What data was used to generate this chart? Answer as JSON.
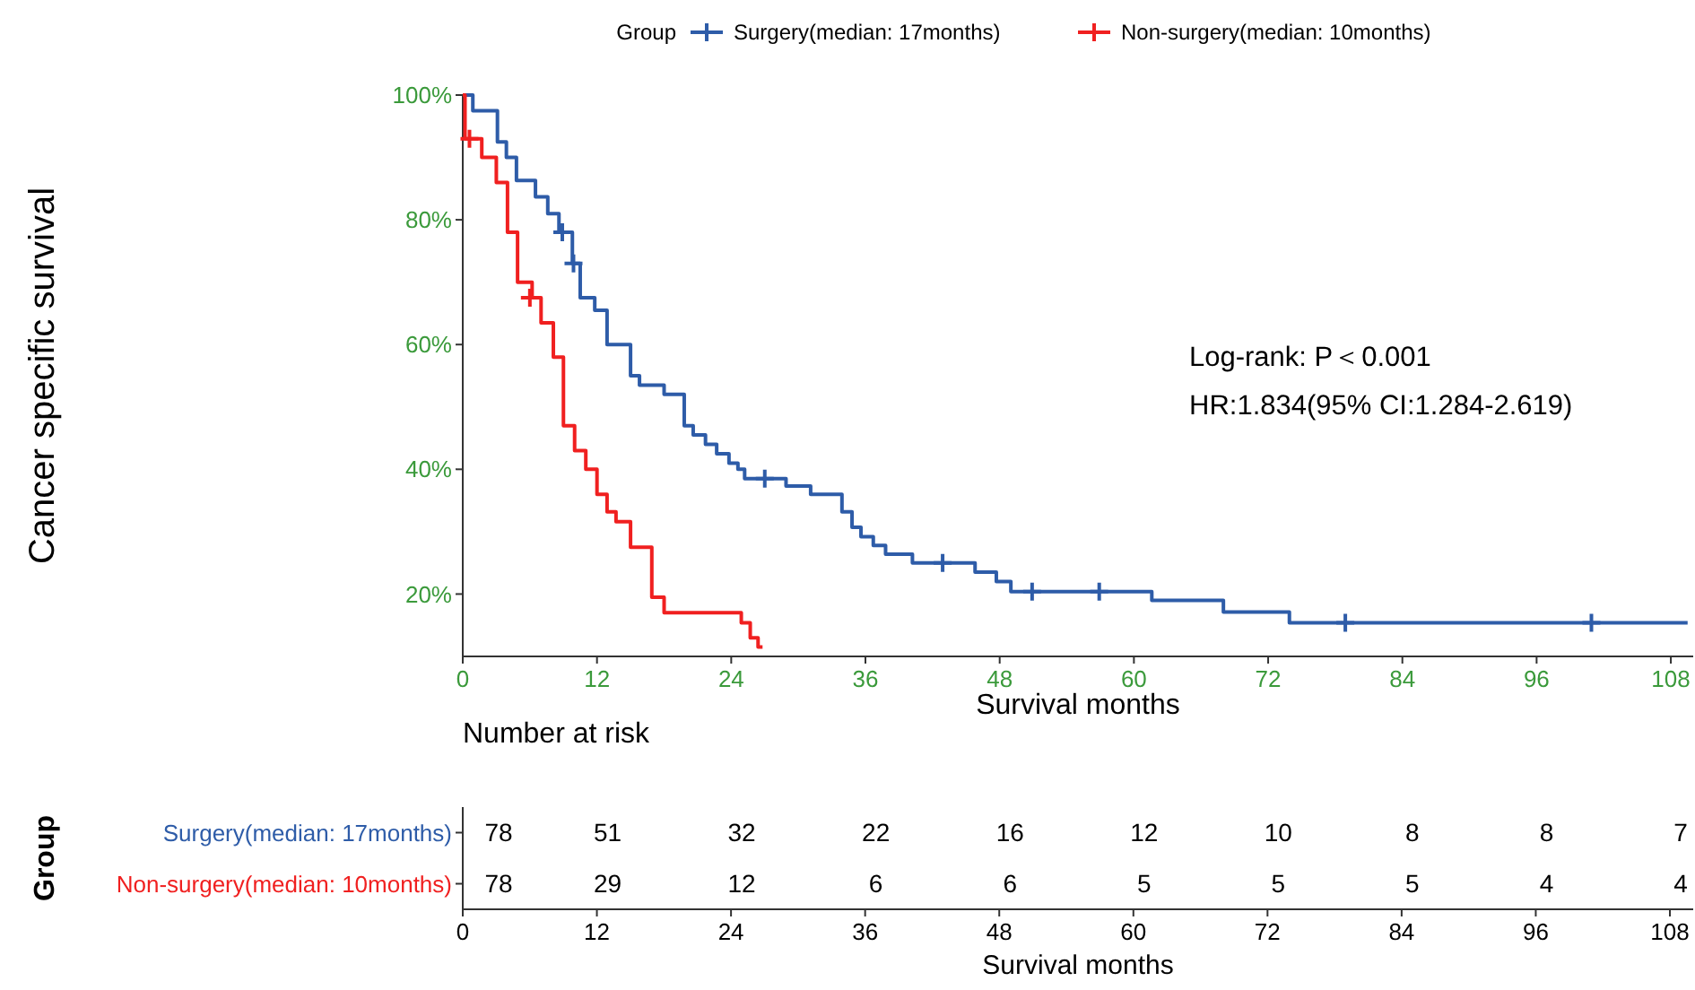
{
  "chart_data": [
    {
      "type": "step",
      "xlabel": "Survival months",
      "ylabel": "Cancer specific survival",
      "legend_title": "Group",
      "legend": "top",
      "grid": false,
      "line_style": "solid",
      "annotations": [
        "Log-rank: P＜0.001",
        "HR:1.834(95% CI:1.284-2.619)"
      ],
      "xlim": [
        0,
        110
      ],
      "xticks": [
        0,
        12,
        24,
        36,
        48,
        60,
        72,
        84,
        96,
        108
      ],
      "ylim": [
        10,
        100
      ],
      "yticks": [
        {
          "value": 20,
          "label": "20%"
        },
        {
          "value": 40,
          "label": "40%"
        },
        {
          "value": 60,
          "label": "60%"
        },
        {
          "value": 80,
          "label": "80%"
        },
        {
          "value": 100,
          "label": "100%"
        }
      ],
      "series": [
        {
          "name": "Surgery(median: 17months)",
          "color": "#2e5ca8",
          "x": [
            0,
            0.9,
            3.1,
            3.9,
            4.8,
            6.5,
            7.6,
            8.6,
            9.8,
            10.5,
            11.8,
            12.9,
            15,
            15.8,
            18,
            19.8,
            20.6,
            21.7,
            22.7,
            23.8,
            24.6,
            25.2,
            28.9,
            31.1,
            33.9,
            34.8,
            35.6,
            36.7,
            37.8,
            40.2,
            45.8,
            47.7,
            49,
            61.6,
            68,
            73.9,
            109.5
          ],
          "values": [
            100,
            97.5,
            92.5,
            90,
            86.3,
            83.7,
            81,
            78,
            73,
            67.5,
            65.5,
            60,
            55,
            53.5,
            52,
            47,
            45.5,
            44,
            42.5,
            41,
            40,
            38.5,
            37.3,
            36,
            33.2,
            30.7,
            29.2,
            27.8,
            26.4,
            25,
            23.5,
            22,
            20.4,
            19,
            17.1,
            15.4,
            15.4
          ]
        },
        {
          "name": "Non-surgery(median: 10months)",
          "color": "#f02020",
          "x": [
            0,
            0.2,
            1.7,
            3,
            4,
            4.9,
            6.2,
            7,
            8.1,
            9,
            10,
            11,
            12,
            12.9,
            13.7,
            15,
            16.9,
            18,
            24.9,
            25.7,
            26.4,
            26.8
          ],
          "values": [
            100,
            93,
            90,
            86,
            78,
            70,
            67.5,
            63.5,
            58,
            47,
            43,
            40,
            36,
            33.2,
            31.6,
            27.5,
            19.5,
            17,
            15.4,
            13,
            11.5,
            11.5
          ]
        },
        {
          "type": "scatter",
          "color": "#2e5ca8",
          "marker": "cross",
          "x": [
            8.9,
            9.9,
            27,
            42.9,
            50.9,
            56.9,
            78.9,
            100.9
          ],
          "values": [
            78,
            73,
            38.5,
            25,
            20.4,
            20.4,
            15.4,
            15.4
          ]
        },
        {
          "type": "scatter",
          "color": "#f02020",
          "marker": "cross",
          "x": [
            0.6,
            6
          ],
          "values": [
            93,
            67.5
          ]
        }
      ]
    },
    {
      "type": "heatmap",
      "title": "Number at risk",
      "xlabel": "Survival months",
      "ylabel": "Group",
      "data_labels": true,
      "categories": [
        "0",
        "12",
        "24",
        "36",
        "48",
        "60",
        "72",
        "84",
        "96",
        "108"
      ],
      "y_categories": [
        "Surgery(median: 17months)",
        "Non-surgery(median: 10months)"
      ],
      "colors": [
        "#2e5ca8",
        "#f02020"
      ],
      "cells": [
        [
          78,
          51,
          32,
          22,
          16,
          12,
          10,
          8,
          8,
          7
        ],
        [
          78,
          29,
          12,
          6,
          6,
          5,
          5,
          5,
          4,
          4
        ]
      ]
    }
  ]
}
